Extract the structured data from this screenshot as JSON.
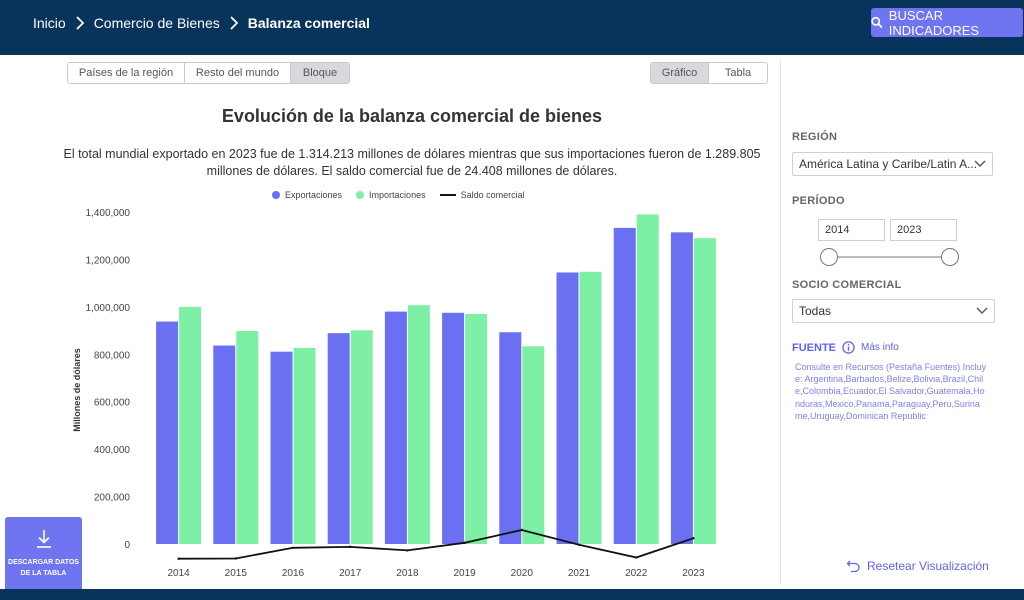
{
  "header": {
    "breadcrumb": [
      "Inicio",
      "Comercio de Bienes",
      "Balanza comercial"
    ],
    "search_label": "BUSCAR INDICADORES"
  },
  "tabs_region": [
    "Países de la región",
    "Resto del mundo",
    "Bloque"
  ],
  "tabs_region_active": 2,
  "tabs_view": [
    "Gráfico",
    "Tabla"
  ],
  "tabs_view_active": 0,
  "chart": {
    "title": "Evolución de la balanza comercial de bienes",
    "subtitle": "El total mundial exportado en 2023 fue de 1.314.213 millones de dólares mientras que sus importaciones fueron de 1.289.805 millones de dólares. El saldo comercial fue de 24.408 millones de dólares.",
    "legend": [
      "Exportaciones",
      "Importaciones",
      "Saldo comercial"
    ]
  },
  "colors": {
    "exports": "#6b6ff2",
    "imports": "#7ef0a6",
    "balance": "#111111",
    "brand": "#08345c",
    "accent": "#6f74f0"
  },
  "chart_data": {
    "type": "bar",
    "ylabel": "Millones de dólares",
    "ylim": [
      -70000,
      1400000
    ],
    "yticks": [
      "0",
      "200,000",
      "400,000",
      "600,000",
      "800,000",
      "1,000,000",
      "1,200,000",
      "1,400,000"
    ],
    "categories": [
      "2014",
      "2015",
      "2016",
      "2017",
      "2018",
      "2019",
      "2020",
      "2021",
      "2022",
      "2023"
    ],
    "series": [
      {
        "name": "Exportaciones",
        "type": "bar",
        "values": [
          938000,
          837000,
          811000,
          889000,
          980000,
          975000,
          893000,
          1145000,
          1333000,
          1314213
        ]
      },
      {
        "name": "Importaciones",
        "type": "bar",
        "values": [
          1000000,
          898000,
          827000,
          901000,
          1007000,
          970000,
          834000,
          1148000,
          1390000,
          1289805
        ]
      },
      {
        "name": "Saldo comercial",
        "type": "line",
        "values": [
          -62000,
          -61000,
          -16000,
          -12000,
          -27000,
          5000,
          59000,
          -3000,
          -57000,
          24408
        ]
      }
    ]
  },
  "sidebar": {
    "region_label": "REGIÓN",
    "region_value": "América Latina y Caribe/Latin A...",
    "periodo_label": "PERÍODO",
    "year_from": "2014",
    "year_to": "2023",
    "socio_label": "SOCIO COMERCIAL",
    "socio_value": "Todas",
    "fuente_label": "FUENTE",
    "mas_info": "Más info",
    "fuente_text": "Consulte en Recursos (Pestaña Fuentes) Incluye: Argentina,Barbados,Belize,Bolivia,Brazil,Chile,Colombia,Ecuador,El Salvador,Guatemala,Honduras,Mexico,Panama,Paraguay,Peru,Suriname,Uruguay,Dominican Republic",
    "reset_label": "Resetear Visualización"
  },
  "download_label": "DESCARGAR DATOS DE LA TABLA"
}
